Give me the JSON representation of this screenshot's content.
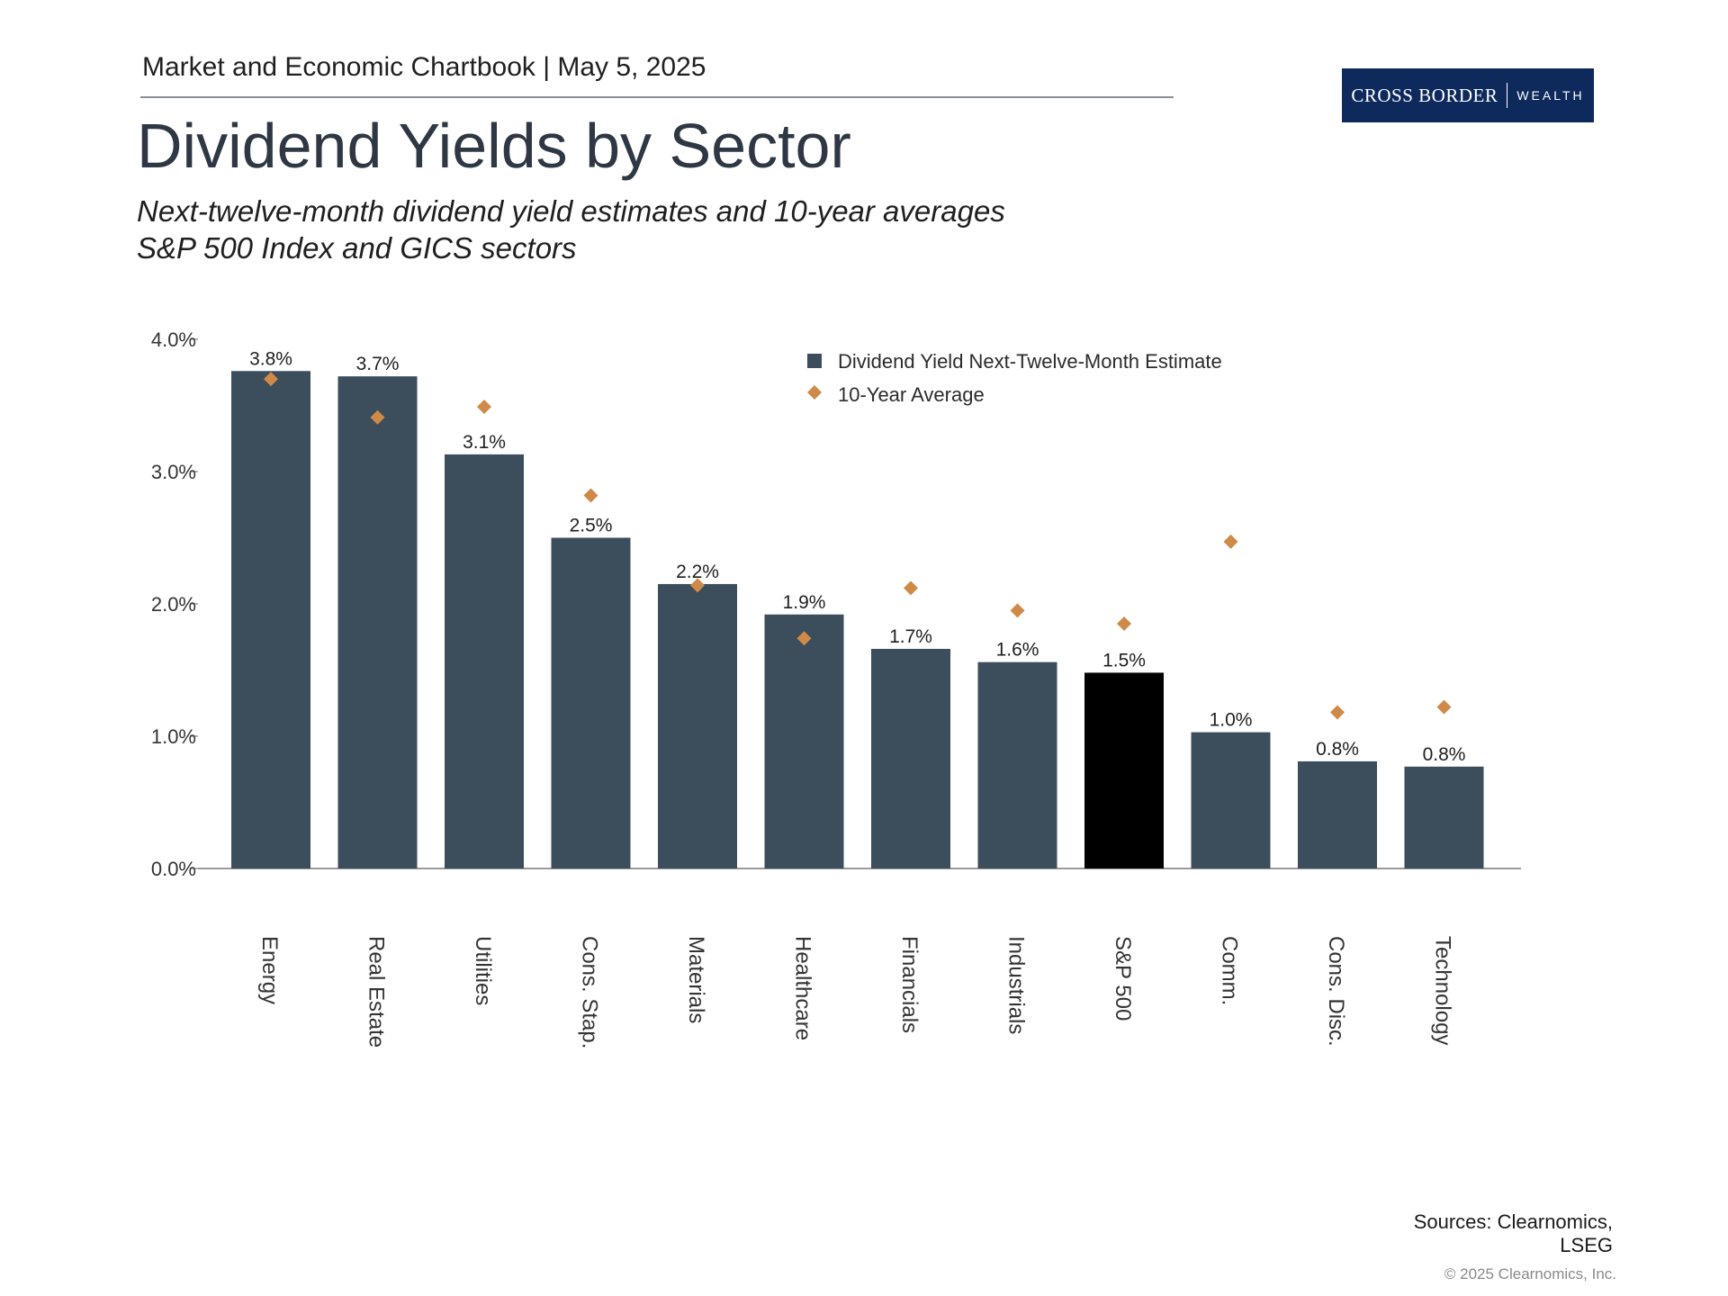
{
  "header": {
    "kicker": "Market and Economic Chartbook | May 5, 2025",
    "logo_brand": "CROSS BORDER",
    "logo_sub": "WEALTH"
  },
  "title": "Dividend Yields by Sector",
  "subtitle_line1": "Next-twelve-month dividend yield estimates and 10-year averages",
  "subtitle_line2": "S&P 500 Index and GICS sectors",
  "chart_data": {
    "type": "bar",
    "categories": [
      "Energy",
      "Real Estate",
      "Utilities",
      "Cons. Stap.",
      "Materials",
      "Healthcare",
      "Financials",
      "Industrials",
      "S&P 500",
      "Comm.",
      "Cons. Disc.",
      "Technology"
    ],
    "series": [
      {
        "name": "Dividend Yield Next-Twelve-Month Estimate",
        "type": "bar",
        "values": [
          3.76,
          3.72,
          3.13,
          2.5,
          2.15,
          1.92,
          1.66,
          1.56,
          1.48,
          1.03,
          0.81,
          0.77
        ],
        "labels": [
          "3.8%",
          "3.7%",
          "3.1%",
          "2.5%",
          "2.2%",
          "1.9%",
          "1.7%",
          "1.6%",
          "1.5%",
          "1.0%",
          "0.8%",
          "0.8%"
        ],
        "highlight_index": 8
      },
      {
        "name": "10-Year Average",
        "type": "scatter",
        "values": [
          3.7,
          3.41,
          3.49,
          2.82,
          2.14,
          1.74,
          2.12,
          1.95,
          1.85,
          2.47,
          1.18,
          1.22
        ]
      }
    ],
    "ylim": [
      0,
      4
    ],
    "yticks": [
      "0.0%",
      "1.0%",
      "2.0%",
      "3.0%",
      "4.0%"
    ],
    "xlabel": "",
    "ylabel": "",
    "legend_position": "top-right",
    "colors": {
      "bar": "#3c4d5c",
      "highlight": "#000000",
      "marker": "#d08a48",
      "axis": "#9a9a9a"
    }
  },
  "footer": {
    "sources_line1": "Sources: Clearnomics,",
    "sources_line2": "LSEG",
    "copyright": "© 2025 Clearnomics, Inc."
  }
}
